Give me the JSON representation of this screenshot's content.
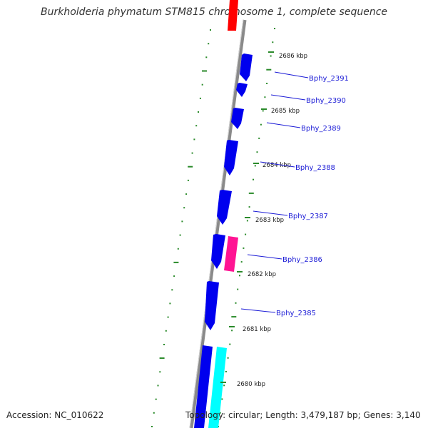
{
  "title": "Burkholderia phymatum STM815 chromosome 1, complete sequence",
  "accession_text": "Accession: NC_010622",
  "topology_text": "Topology: circular; Length: 3,479,187 bp; Genes: 3,140",
  "colors": {
    "backbone": "#8a8a8a",
    "gene_forward": "#0000ee",
    "gene_magenta": "#ff1493",
    "gene_cyan": "#00ffff",
    "gene_red": "#ff0000",
    "dots": "#2a8a2a",
    "label": "#1a1ad6"
  },
  "kbp_ticks": [
    "2686 kbp",
    "2685 kbp",
    "2684 kbp",
    "2683 kbp",
    "2682 kbp",
    "2681 kbp",
    "2680 kbp"
  ],
  "gene_labels": [
    "Bphy_2391",
    "Bphy_2390",
    "Bphy_2389",
    "Bphy_2388",
    "Bphy_2387",
    "Bphy_2386",
    "Bphy_2385"
  ]
}
